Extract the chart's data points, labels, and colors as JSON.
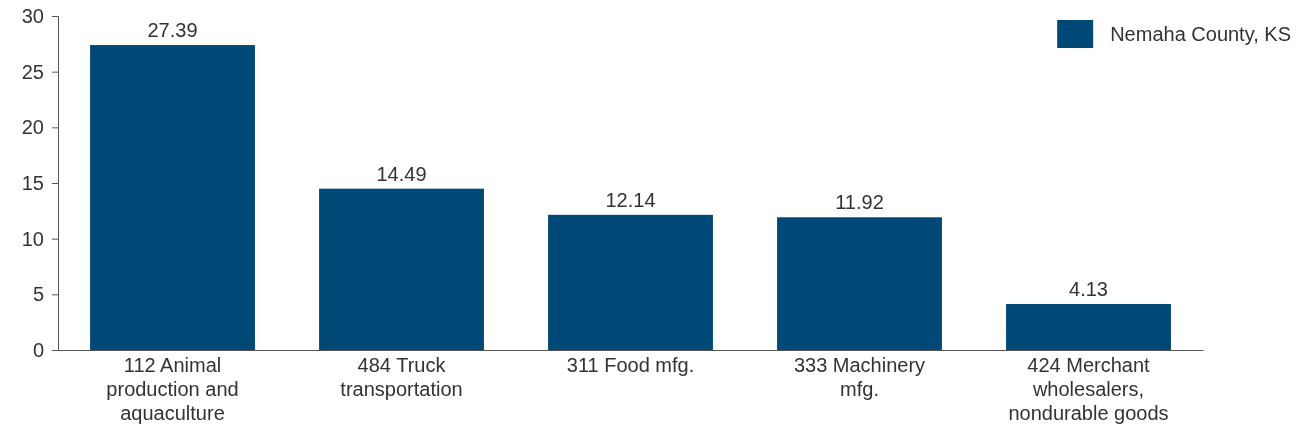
{
  "chart_data": {
    "type": "bar",
    "categories": [
      "112 Animal production and aquaculture",
      "484 Truck transportation",
      "311 Food mfg.",
      "333 Machinery mfg.",
      "424 Merchant wholesalers, nondurable goods"
    ],
    "series": [
      {
        "name": "Nemaha County, KS",
        "color": "#004876",
        "values": [
          27.39,
          14.49,
          12.14,
          11.92,
          4.13
        ]
      }
    ],
    "ylim": [
      0,
      30
    ],
    "yticks": [
      0,
      5,
      10,
      15,
      20,
      25,
      30
    ],
    "grid": false,
    "legend": "top right",
    "data_labels": true
  }
}
